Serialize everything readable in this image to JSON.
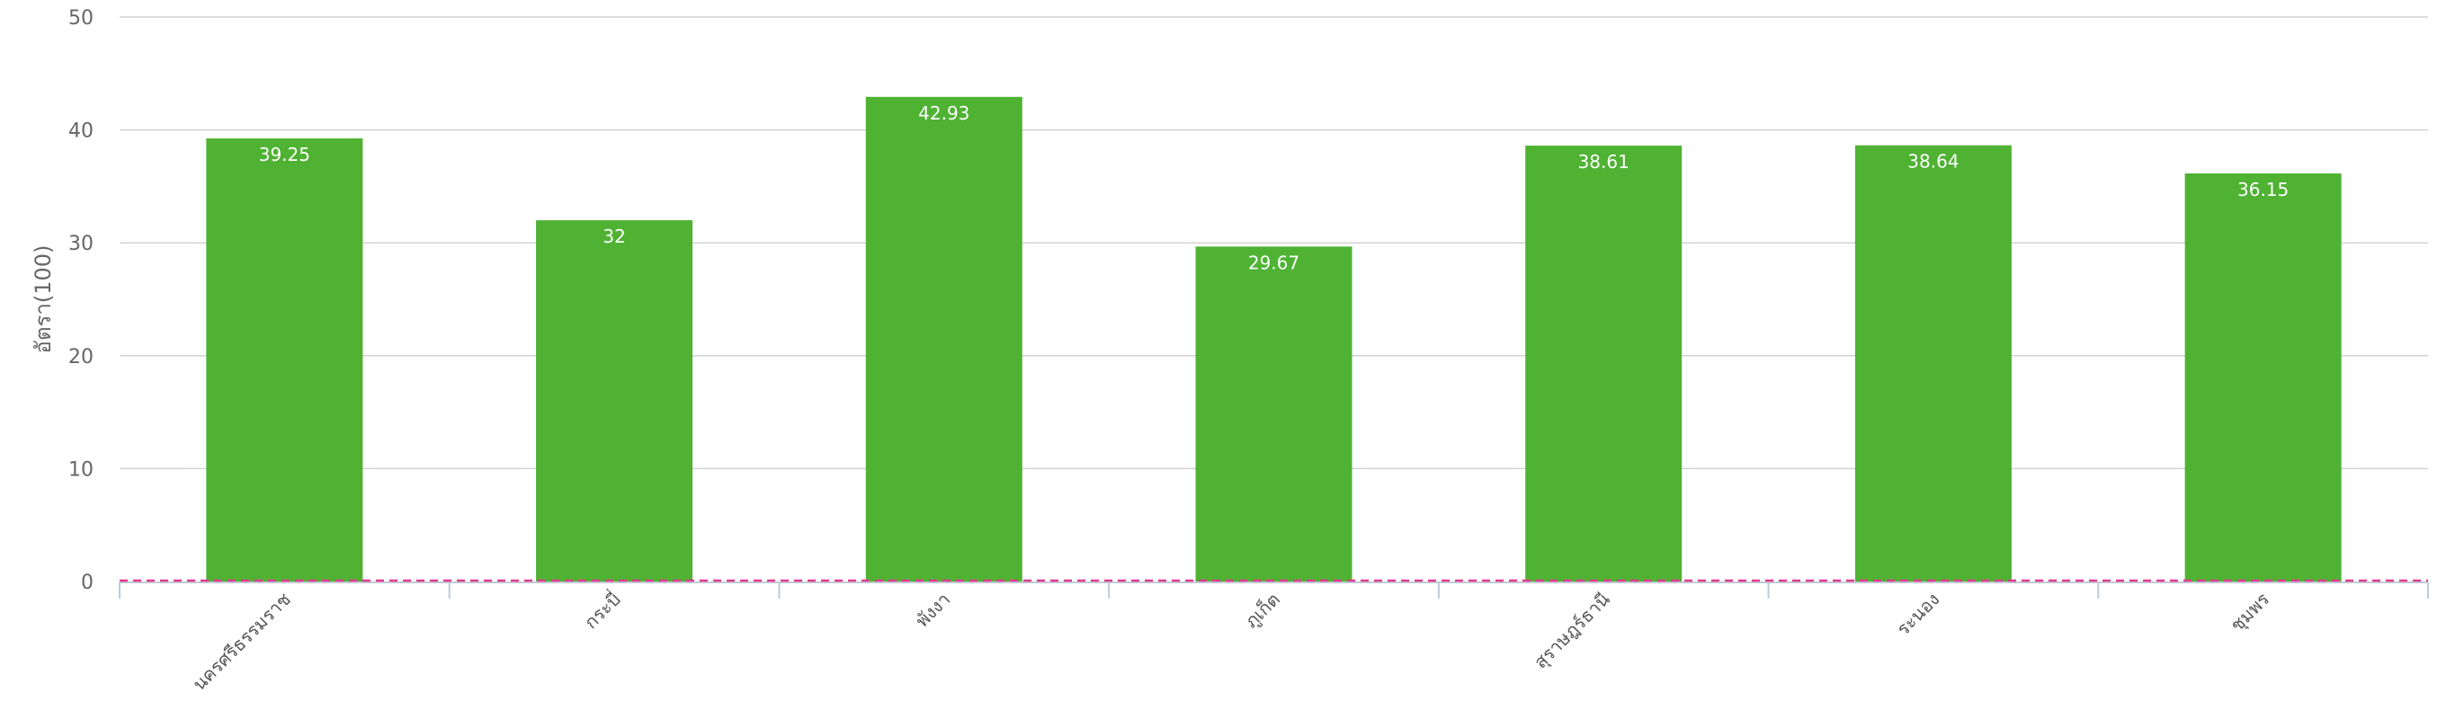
{
  "chart_data": {
    "type": "bar",
    "ylabel": "อัตรา(100)",
    "ylim": [
      0,
      50
    ],
    "yticks": [
      0,
      10,
      20,
      30,
      40,
      50
    ],
    "grid": true,
    "categories": [
      "นครศรีธรรมราช",
      "กระบี่",
      "พังงา",
      "ภูเก็ต",
      "สุราษฎร์ธานี",
      "ระนอง",
      "ชุมพร"
    ],
    "values": [
      39.25,
      32,
      42.93,
      29.67,
      38.61,
      38.64,
      36.15
    ],
    "data_labels": [
      "39.25",
      "32",
      "42.93",
      "29.67",
      "38.61",
      "38.64",
      "36.15"
    ],
    "reference_line": {
      "value": 0,
      "style": "dashed"
    },
    "colors": {
      "bar": "#4fb233",
      "reference_line": "#e23b8f",
      "grid": "#d3d3d3",
      "axis": "#c0cad6"
    }
  }
}
